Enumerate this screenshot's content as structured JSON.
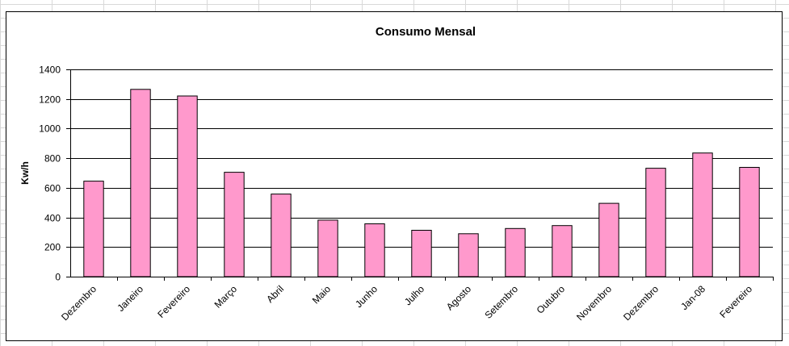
{
  "colors": {
    "bar_fill": "#ff99cc",
    "bar_stroke": "#000000",
    "gridline": "#000000",
    "sheet_grid": "#d8d8d8"
  },
  "chart_data": {
    "type": "bar",
    "title": "Consumo Mensal",
    "xlabel": "",
    "ylabel": "Kw/h",
    "ylim": [
      0,
      1400
    ],
    "yticks": [
      0,
      200,
      400,
      600,
      800,
      1000,
      1200,
      1400
    ],
    "grid": true,
    "legend": "none",
    "categories": [
      "Dezembro",
      "Janeiro",
      "Fevereiro",
      "Março",
      "Abril",
      "Maio",
      "Junho",
      "Julho",
      "Agosto",
      "Setembro",
      "Outubro",
      "Novembro",
      "Dezembro",
      "Jan-08",
      "Fevereiro"
    ],
    "values": [
      645,
      1265,
      1220,
      705,
      558,
      382,
      357,
      313,
      290,
      325,
      345,
      495,
      732,
      835,
      738
    ]
  }
}
